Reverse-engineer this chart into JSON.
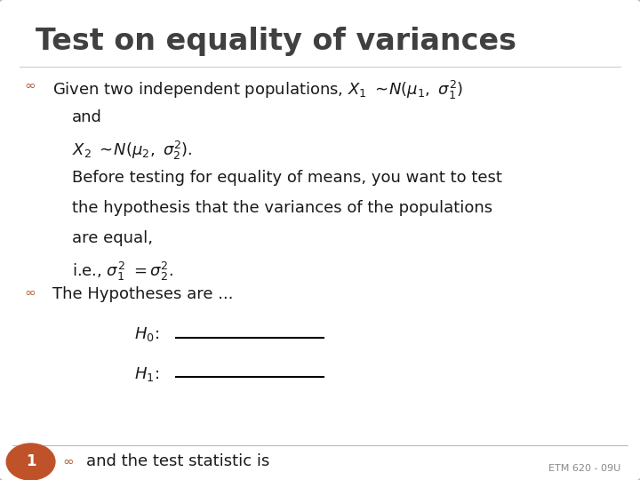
{
  "title": "Test on equality of variances",
  "background_color": "#e8e8e8",
  "slide_bg": "#ffffff",
  "title_color": "#404040",
  "body_color": "#1a1a1a",
  "bullet_color": "#b05a2f",
  "page_num": "1",
  "page_num_bg": "#c0522a",
  "footer_text": "ETM 620 - 09U",
  "line1_plain": "Given two independent populations, ",
  "line1_math": "$X_1\\ \\sim\\!N(\\mu_1,\\ \\sigma_1^2)$",
  "line2": "and",
  "line3": "$X_2\\ \\sim\\!N(\\mu_2,\\ \\sigma_2^2)$.",
  "line4": "Before testing for equality of means, you want to test",
  "line5": "the hypothesis that the variances of the populations",
  "line6": "are equal,",
  "line7": "i.e., $\\sigma_1^2\\ {=}\\sigma_2^2$.",
  "line_hyp": "The Hypotheses are ...",
  "line_H0": "$H_0$:",
  "line_H1": "$H_1$:",
  "line_bottom": "and the test statistic is",
  "figw": 7.2,
  "figh": 5.4,
  "dpi": 100
}
